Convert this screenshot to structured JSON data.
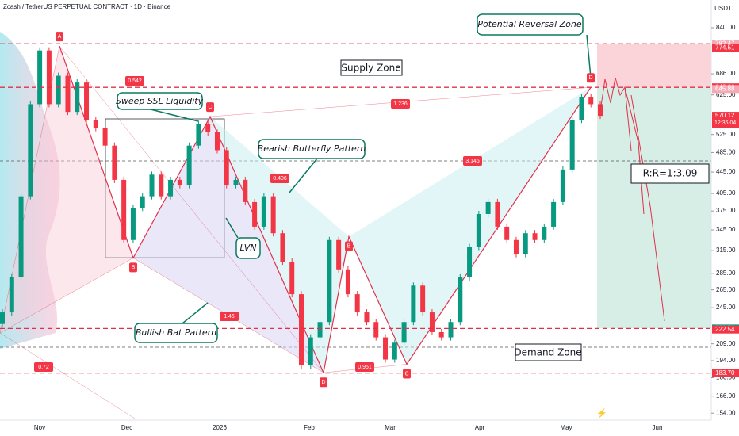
{
  "header": {
    "title": "Zcash / TetherUS PERPETUAL CONTRACT · 1D · Binance",
    "currency": "USDT"
  },
  "price_axis": {
    "ticks": [
      {
        "value": 840,
        "label": "840.00"
      },
      {
        "value": 686,
        "label": "686.00"
      },
      {
        "value": 625,
        "label": "625.00"
      },
      {
        "value": 525,
        "label": "525.00"
      },
      {
        "value": 485,
        "label": "485.00"
      },
      {
        "value": 445,
        "label": "445.00"
      },
      {
        "value": 405,
        "label": "405.00"
      },
      {
        "value": 375,
        "label": "375.00"
      },
      {
        "value": 345,
        "label": "345.00"
      },
      {
        "value": 315,
        "label": "315.00"
      },
      {
        "value": 285,
        "label": "285.00"
      },
      {
        "value": 265,
        "label": "265.00"
      },
      {
        "value": 245,
        "label": "245.00"
      },
      {
        "value": 209,
        "label": "209.00"
      },
      {
        "value": 194,
        "label": "194.00"
      },
      {
        "value": 180,
        "label": "180.00"
      },
      {
        "value": 166,
        "label": "166.00"
      },
      {
        "value": 154,
        "label": "154.00"
      }
    ]
  },
  "price_tags": [
    782.47,
    774.51,
    {
      "value": 646.2,
      "label": "646.20"
    },
    645.88,
    223.58,
    222.54,
    {
      "value": 183.7,
      "label": "183.70"
    }
  ],
  "current_price": {
    "value": 570.12,
    "countdown": "12:36:04"
  },
  "time_axis": [
    "Nov",
    "Dec",
    "2026",
    "Feb",
    "Mar",
    "Apr",
    "May",
    "Jun"
  ],
  "annotations": {
    "reversal": "Potential Reversal Zone",
    "supply": "Supply Zone",
    "sweep": "Sweep SSL Liquidity",
    "butterfly": "Bearish Butterfly Pattern",
    "lvn": "LVN",
    "bat": "Bullish Bat Pattern",
    "demand": "Demand Zone",
    "rr": "R:R=1:3.09"
  },
  "ratios": [
    "0.542",
    "1.236",
    "0.406",
    "3.146",
    "1.46",
    "0.72",
    "0.951"
  ],
  "bat_points": [
    {
      "label": "A",
      "price": 775
    },
    {
      "label": "B",
      "price": 305
    },
    {
      "label": "C",
      "price": 568
    },
    {
      "label": "D",
      "price": 184
    }
  ],
  "butterfly_points": [
    {
      "label": "B",
      "price": 335
    },
    {
      "label": "C",
      "price": 191
    },
    {
      "label": "D",
      "price": 646
    }
  ],
  "closes": [
    240,
    280,
    400,
    600,
    760,
    600,
    680,
    580,
    660,
    560,
    540,
    500,
    430,
    330,
    380,
    400,
    440,
    400,
    430,
    420,
    500,
    550,
    530,
    490,
    420,
    430,
    390,
    350,
    400,
    340,
    300,
    260,
    190,
    215,
    230,
    330,
    290,
    260,
    240,
    230,
    215,
    195,
    210,
    230,
    270,
    240,
    220,
    215,
    230,
    280,
    320,
    370,
    390,
    350,
    330,
    310,
    340,
    330,
    350,
    390,
    450,
    560,
    620,
    600,
    570
  ]
}
